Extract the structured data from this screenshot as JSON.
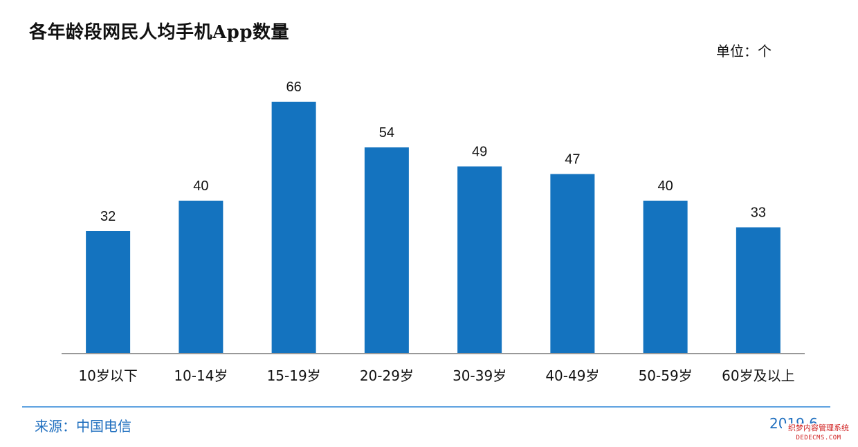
{
  "title": "各年龄段网民人均手机App数量",
  "unit_label": "单位：个",
  "source": "来源：中国电信",
  "date": "2019.6",
  "watermark": {
    "line1": "织梦内容管理系统",
    "line2": "DEDECMS.COM"
  },
  "colors": {
    "bar": "#1473bf",
    "axis": "#999999",
    "footer_text": "#1f6fbf",
    "footer_line": "#5fa2e0"
  },
  "chart_data": {
    "type": "bar",
    "categories": [
      "10岁以下",
      "10-14岁",
      "15-19岁",
      "20-29岁",
      "30-39岁",
      "40-49岁",
      "50-59岁",
      "60岁及以上"
    ],
    "values": [
      32,
      40,
      66,
      54,
      49,
      47,
      40,
      33
    ],
    "title": "各年龄段网民人均手机App数量",
    "ylabel": "单位：个",
    "ylim": [
      0,
      66
    ],
    "grid": false,
    "legend": "none",
    "data_labels": true
  }
}
